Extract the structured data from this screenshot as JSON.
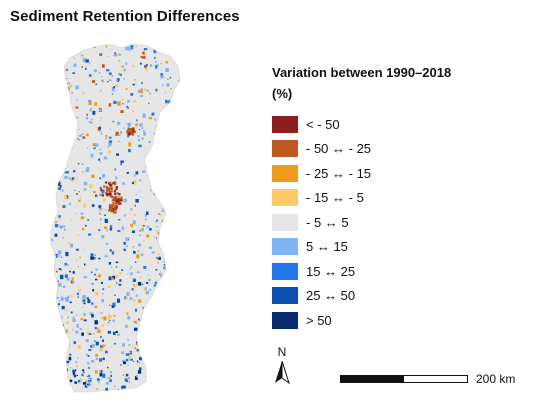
{
  "title": "Sediment Retention Differences",
  "legend": {
    "title": "Variation between 1990–2018",
    "unit": "(%)",
    "items": [
      {
        "label": "< - 50",
        "color": "#8b1e1e"
      },
      {
        "label": "- 50 ↔ - 25",
        "color": "#bd5a22"
      },
      {
        "label": "- 25 ↔ - 15",
        "color": "#ee9a1c"
      },
      {
        "label": "- 15 ↔ - 5",
        "color": "#fbc969"
      },
      {
        "label": "- 5 ↔ 5",
        "color": "#e6e6e6"
      },
      {
        "label": "5 ↔ 15",
        "color": "#7fb5f5"
      },
      {
        "label": "15 ↔ 25",
        "color": "#2075e8"
      },
      {
        "label": "25 ↔ 50",
        "color": "#0a4fb0"
      },
      {
        "label": "> 50",
        "color": "#0a2a6e"
      }
    ]
  },
  "north_arrow": {
    "label": "N"
  },
  "scale_bar": {
    "label": "200 km"
  }
}
